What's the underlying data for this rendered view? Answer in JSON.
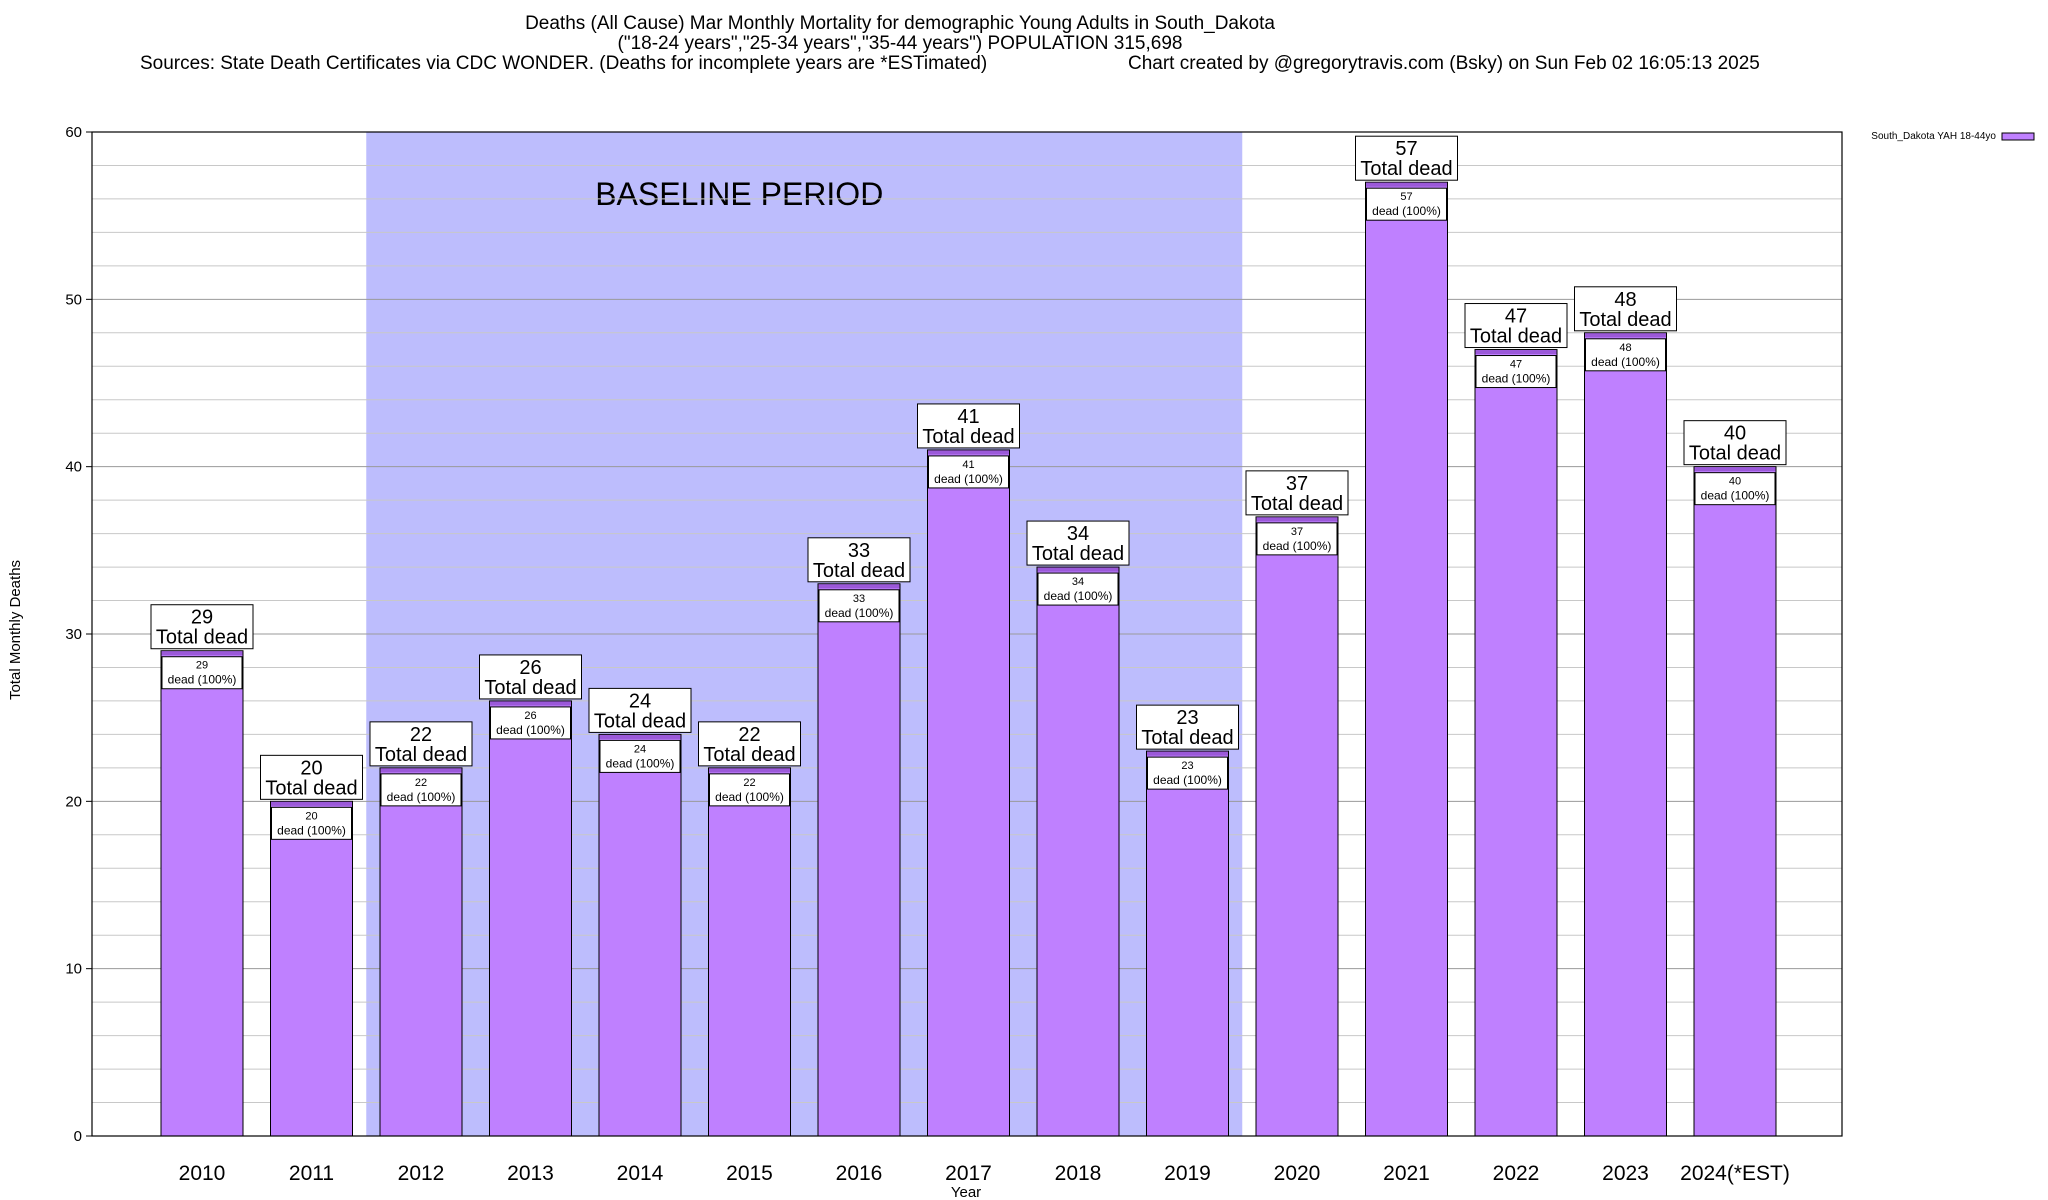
{
  "title": {
    "line1": "Deaths (All Cause) Mar Monthly Mortality for demographic Young Adults in South_Dakota",
    "line2": "(\"18-24 years\",\"25-34 years\",\"35-44 years\") POPULATION 315,698",
    "line3_source": "Sources: State Death Certificates via CDC WONDER. (Deaths for incomplete years are *ESTimated)",
    "line3_credit": "Chart created by @gregorytravis.com (Bsky) on Sun Feb 02 16:05:13 2025"
  },
  "chart_data": {
    "type": "bar",
    "categories": [
      "2010",
      "2011",
      "2012",
      "2013",
      "2014",
      "2015",
      "2016",
      "2017",
      "2018",
      "2019",
      "2020",
      "2021",
      "2022",
      "2023",
      "2024(*EST)"
    ],
    "series": [
      {
        "name": "South_Dakota YAH 18-44yo",
        "values": [
          29,
          20,
          22,
          26,
          24,
          22,
          33,
          41,
          34,
          23,
          37,
          57,
          47,
          48,
          40
        ]
      }
    ],
    "total_label_suffix": "Total dead",
    "inner_label_suffix": "dead (100%)",
    "xlabel": "Year",
    "ylabel": "Total Monthly Deaths",
    "ylim": [
      0,
      60
    ],
    "yticks": [
      0,
      10,
      20,
      30,
      40,
      50,
      60
    ],
    "grid": true,
    "legend_position": "top-right",
    "baseline": {
      "label": "BASELINE PERIOD",
      "from": "2012",
      "to": "2019"
    },
    "colors": {
      "bar_fill": "#bf80ff",
      "bar_top_stripe": "#9b59d9",
      "baseline_fill": "#bdbdfd",
      "grid": "#c8c8c8"
    }
  }
}
